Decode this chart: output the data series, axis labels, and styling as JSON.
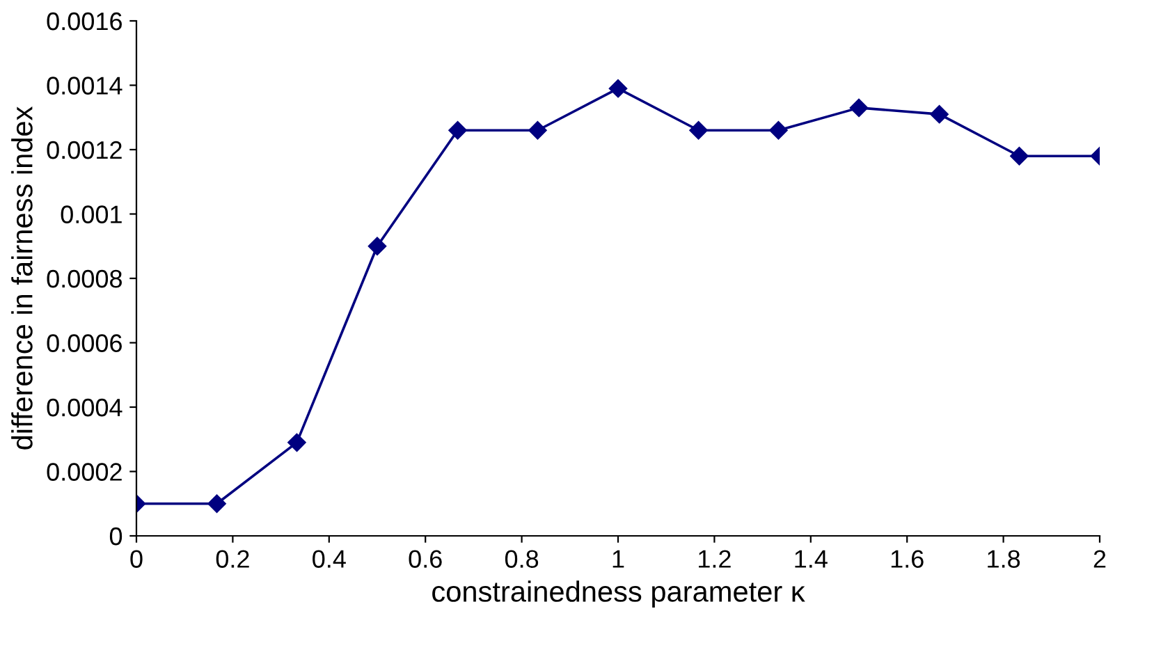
{
  "chart_data": {
    "type": "line",
    "xlabel": "constrainedness parameter κ",
    "ylabel": "difference in fairness index",
    "x": [
      0,
      0.167,
      0.333,
      0.5,
      0.667,
      0.833,
      1,
      1.167,
      1.333,
      1.5,
      1.667,
      1.833,
      2
    ],
    "series": [
      {
        "color": "#000080",
        "values": [
          0.0001,
          0.0001,
          0.00029,
          0.0009,
          0.00126,
          0.00126,
          0.00139,
          0.00126,
          0.00126,
          0.00133,
          0.00131,
          0.00118,
          0.00118
        ]
      }
    ],
    "xlim": [
      0,
      2
    ],
    "xticks": [
      0,
      0.2,
      0.4,
      0.6,
      0.8,
      1,
      1.2,
      1.4,
      1.6,
      1.8,
      2
    ],
    "ylim": [
      0,
      0.0016
    ],
    "yticks": [
      0,
      0.0002,
      0.0004,
      0.0006,
      0.0008,
      0.001,
      0.0012,
      0.0014,
      0.0016
    ],
    "grid": false,
    "legend": false,
    "marker": "diamond",
    "line_style": "solid"
  }
}
